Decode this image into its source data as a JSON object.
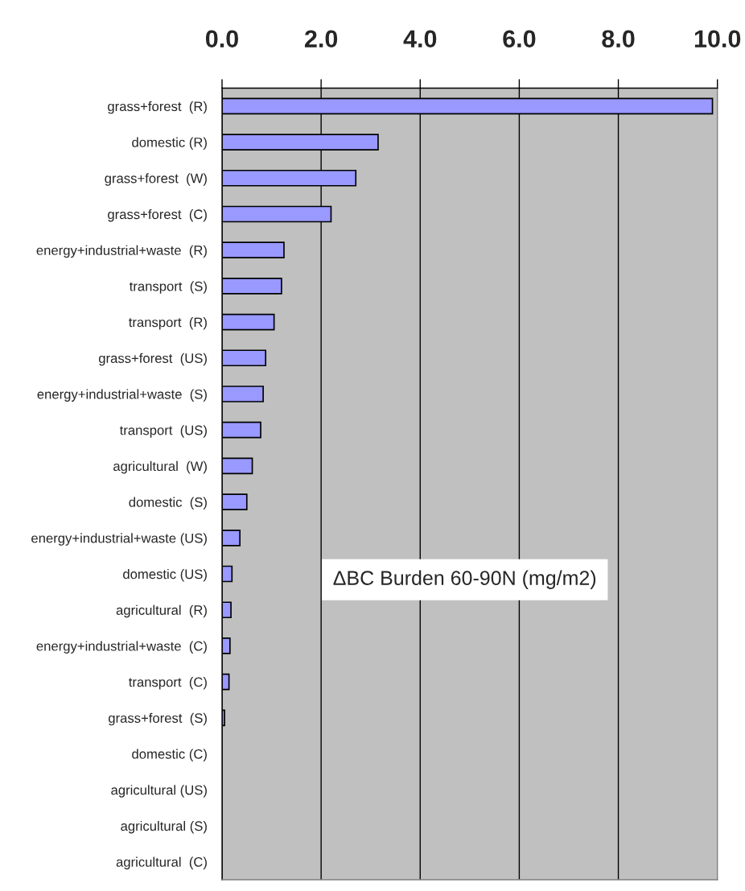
{
  "chart_data": {
    "type": "bar",
    "orientation": "horizontal",
    "categories": [
      "grass+forest  (R)",
      "domestic (R)",
      "grass+forest  (W)",
      "grass+forest  (C)",
      "energy+industrial+waste  (R)",
      "transport  (S)",
      "transport  (R)",
      "grass+forest  (US)",
      "energy+industrial+waste  (S)",
      "transport  (US)",
      "agricultural  (W)",
      "domestic  (S)",
      "energy+industrial+waste (US)",
      "domestic (US)",
      "agricultural  (R)",
      "energy+industrial+waste  (C)",
      "transport  (C)",
      "grass+forest  (S)",
      "domestic (C)",
      "agricultural (US)",
      "agricultural (S)",
      "agricultural  (C)"
    ],
    "values": [
      9.9,
      3.15,
      2.7,
      2.2,
      1.25,
      1.2,
      1.05,
      0.88,
      0.83,
      0.78,
      0.61,
      0.5,
      0.36,
      0.2,
      0.18,
      0.16,
      0.14,
      0.05,
      0,
      0,
      0,
      0
    ],
    "color": "#9999ff",
    "xlim": [
      0,
      10
    ],
    "xticks": [
      {
        "value": 0,
        "label": "0.0"
      },
      {
        "value": 2,
        "label": "2.0"
      },
      {
        "value": 4,
        "label": "4.0"
      },
      {
        "value": 6,
        "label": "6.0"
      },
      {
        "value": 8,
        "label": "8.0"
      },
      {
        "value": 10,
        "label": "10.0"
      }
    ],
    "grid": "x",
    "annotations": [
      "ΔBC Burden 60-90N (mg/m2)"
    ]
  }
}
